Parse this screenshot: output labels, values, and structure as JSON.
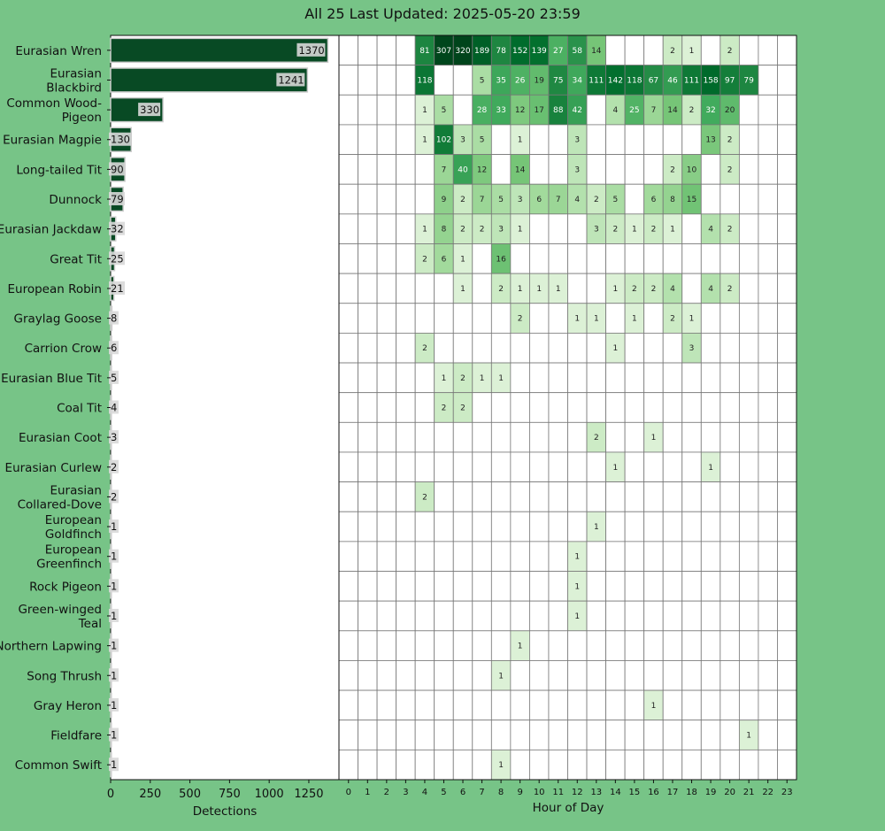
{
  "title": "All 25 Last Updated: 2025-05-20 23:59",
  "chart_data": [
    {
      "type": "bar",
      "orientation": "horizontal",
      "xlabel": "Detections",
      "xlim": [
        0,
        1440
      ],
      "xticks": [
        0,
        250,
        500,
        750,
        1000,
        1250
      ],
      "categories": [
        "Eurasian Wren",
        "Eurasian Blackbird",
        "Common Wood-Pigeon",
        "Eurasian Magpie",
        "Long-tailed Tit",
        "Dunnock",
        "Eurasian Jackdaw",
        "Great Tit",
        "European Robin",
        "Graylag Goose",
        "Carrion Crow",
        "Eurasian Blue Tit",
        "Coal Tit",
        "Eurasian Coot",
        "Eurasian Curlew",
        "Eurasian Collared-Dove",
        "European Goldfinch",
        "European Greenfinch",
        "Rock Pigeon",
        "Green-winged Teal",
        "Northern Lapwing",
        "Song Thrush",
        "Gray Heron",
        "Fieldfare",
        "Common Swift"
      ],
      "category_lines": [
        [
          "Eurasian Wren"
        ],
        [
          "Eurasian",
          "Blackbird"
        ],
        [
          "Common Wood-",
          "Pigeon"
        ],
        [
          "Eurasian Magpie"
        ],
        [
          "Long-tailed Tit"
        ],
        [
          "Dunnock"
        ],
        [
          "Eurasian Jackdaw"
        ],
        [
          "Great Tit"
        ],
        [
          "European Robin"
        ],
        [
          "Graylag Goose"
        ],
        [
          "Carrion Crow"
        ],
        [
          "Eurasian Blue Tit"
        ],
        [
          "Coal Tit"
        ],
        [
          "Eurasian Coot"
        ],
        [
          "Eurasian Curlew"
        ],
        [
          "Eurasian",
          "Collared-Dove"
        ],
        [
          "European",
          "Goldfinch"
        ],
        [
          "European",
          "Greenfinch"
        ],
        [
          "Rock Pigeon"
        ],
        [
          "Green-winged",
          "Teal"
        ],
        [
          "Northern Lapwing"
        ],
        [
          "Song Thrush"
        ],
        [
          "Gray Heron"
        ],
        [
          "Fieldfare"
        ],
        [
          "Common Swift"
        ]
      ],
      "values": [
        1370,
        1241,
        330,
        130,
        90,
        79,
        32,
        25,
        21,
        8,
        6,
        5,
        4,
        3,
        2,
        2,
        1,
        1,
        1,
        1,
        1,
        1,
        1,
        1,
        1
      ],
      "bar_color": "#084a24"
    },
    {
      "type": "heatmap",
      "xlabel": "Hour of Day",
      "x": [
        "0",
        "1",
        "2",
        "3",
        "4",
        "5",
        "6",
        "7",
        "8",
        "9",
        "10",
        "11",
        "12",
        "13",
        "14",
        "15",
        "16",
        "17",
        "18",
        "19",
        "20",
        "21",
        "22",
        "23"
      ],
      "highlight_hour": "23",
      "highlight_color": "#ffff33",
      "colormap": "Greens",
      "rows": [
        {
          "4": 81,
          "5": 307,
          "6": 320,
          "7": 189,
          "8": 78,
          "9": 152,
          "10": 139,
          "11": 27,
          "12": 58,
          "13": 14,
          "17": 2,
          "18": 1,
          "20": 2
        },
        {
          "4": 118,
          "7": 5,
          "8": 35,
          "9": 26,
          "10": 19,
          "11": 75,
          "12": 34,
          "13": 111,
          "14": 142,
          "15": 118,
          "16": 67,
          "17": 46,
          "18": 111,
          "19": 158,
          "20": 97,
          "21": 79
        },
        {
          "4": 1,
          "5": 5,
          "7": 28,
          "8": 33,
          "9": 12,
          "10": 17,
          "11": 88,
          "12": 42,
          "14": 4,
          "15": 25,
          "16": 7,
          "17": 14,
          "18": 2,
          "19": 32,
          "20": 20
        },
        {
          "4": 1,
          "5": 102,
          "6": 3,
          "7": 5,
          "9": 1,
          "12": 3,
          "19": 13,
          "20": 2
        },
        {
          "5": 7,
          "6": 40,
          "7": 12,
          "9": 14,
          "12": 3,
          "17": 2,
          "18": 10,
          "20": 2
        },
        {
          "5": 9,
          "6": 2,
          "7": 7,
          "8": 5,
          "9": 3,
          "10": 6,
          "11": 7,
          "12": 4,
          "13": 2,
          "14": 5,
          "16": 6,
          "17": 8,
          "18": 15
        },
        {
          "4": 1,
          "5": 8,
          "6": 2,
          "7": 2,
          "8": 3,
          "9": 1,
          "13": 3,
          "14": 2,
          "15": 1,
          "16": 2,
          "17": 1,
          "19": 4,
          "20": 2
        },
        {
          "4": 2,
          "5": 6,
          "6": 1,
          "8": 16
        },
        {
          "6": 1,
          "8": 2,
          "9": 1,
          "10": 1,
          "11": 1,
          "14": 1,
          "15": 2,
          "16": 2,
          "17": 4,
          "19": 4,
          "20": 2
        },
        {
          "9": 2,
          "12": 1,
          "13": 1,
          "15": 1,
          "17": 2,
          "18": 1
        },
        {
          "4": 2,
          "14": 1,
          "18": 3
        },
        {
          "5": 1,
          "6": 2,
          "7": 1,
          "8": 1
        },
        {
          "5": 2,
          "6": 2
        },
        {
          "13": 2,
          "16": 1
        },
        {
          "14": 1,
          "19": 1
        },
        {
          "4": 2
        },
        {
          "13": 1
        },
        {
          "12": 1
        },
        {
          "12": 1
        },
        {
          "12": 1
        },
        {
          "9": 1
        },
        {
          "8": 1
        },
        {
          "16": 1
        },
        {
          "21": 1
        },
        {
          "8": 1
        }
      ]
    }
  ]
}
